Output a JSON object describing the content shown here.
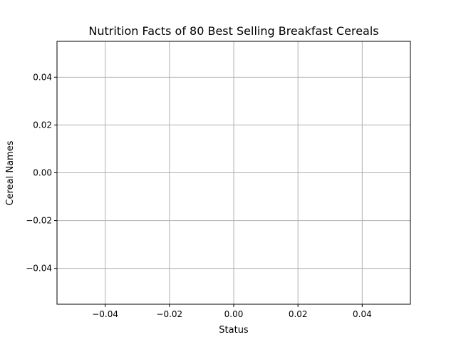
{
  "chart_data": {
    "type": "scatter",
    "title": "Nutrition Facts of 80 Best Selling Breakfast Cereals",
    "xlabel": "Status",
    "ylabel": "Cereal Names",
    "xlim": [
      -0.055,
      0.055
    ],
    "ylim": [
      -0.055,
      0.055
    ],
    "x_ticks": [
      -0.04,
      -0.02,
      0.0,
      0.02,
      0.04
    ],
    "x_tick_labels": [
      "−0.04",
      "−0.02",
      "0.00",
      "0.02",
      "0.04"
    ],
    "y_ticks": [
      -0.04,
      -0.02,
      0.0,
      0.02,
      0.04
    ],
    "y_tick_labels": [
      "−0.04",
      "−0.02",
      "0.00",
      "0.02",
      "0.04"
    ],
    "grid": true,
    "series": []
  }
}
